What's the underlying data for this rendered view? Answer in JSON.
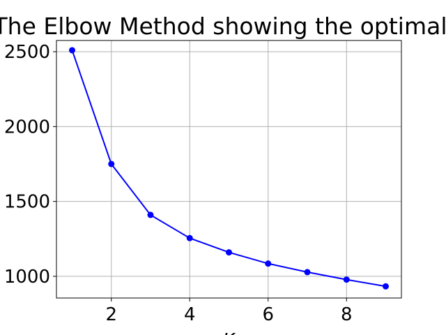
{
  "chart_data": {
    "type": "line",
    "title": "The Elbow Method showing the optimal",
    "xlabel": "K",
    "ylabel": "",
    "x": [
      1,
      2,
      3,
      4,
      5,
      6,
      7,
      8,
      9
    ],
    "series": [
      {
        "values": [
          2510,
          1750,
          1410,
          1255,
          1160,
          1085,
          1028,
          978,
          933
        ],
        "color": "#0000ff",
        "marker": "circle"
      }
    ],
    "xlim": [
      0.6,
      9.4
    ],
    "ylim": [
      855,
      2575
    ],
    "xticks": [
      2,
      4,
      6,
      8
    ],
    "xtick_labels": [
      "2",
      "4",
      "6",
      "8"
    ],
    "yticks": [
      1000,
      1500,
      2000,
      2500
    ],
    "ytick_labels": [
      "1000",
      "1500",
      "2000",
      "2500"
    ],
    "grid": true,
    "legend": false
  }
}
